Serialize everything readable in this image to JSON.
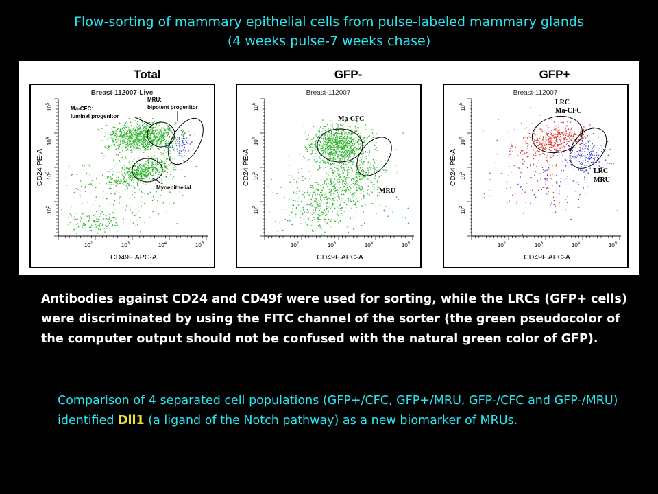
{
  "title": {
    "line1": "Flow-sorting of mammary epithelial cells from pulse-labeled mammary glands",
    "line2": "(4 weeks pulse-7 weeks chase)"
  },
  "panels": [
    {
      "heading": "Total",
      "sample": "Breast-112007-Live",
      "ylabel": "CD24 PE-A",
      "xlabel": "CD49F APC-A",
      "annotations": [
        "Ma-CFC:",
        "luminal progenitor",
        "MRU:",
        "bipotent progenitor",
        "Myoepithelial"
      ],
      "dot_color": "#2fb52f"
    },
    {
      "heading": "GFP-",
      "sample": "Breast-112007",
      "ylabel": "CD24 PE-A",
      "xlabel": "CD49F APC-A",
      "annotations": [
        "Ma-CFC",
        "MRU"
      ],
      "dot_color": "#2fb52f"
    },
    {
      "heading": "GFP+",
      "sample": "Breast-112007",
      "ylabel": "CD24 PE-A",
      "xlabel": "CD49F APC-A",
      "annotations": [
        "LRC",
        "Ma-CFC",
        "LRC",
        "MRU"
      ],
      "dot_colors": [
        "#e03a3a",
        "#3a48e0"
      ]
    }
  ],
  "ticks": {
    "x": [
      "10",
      "10",
      "10",
      "10"
    ],
    "x_exp": [
      "2",
      "3",
      "4",
      "5"
    ],
    "y": [
      "10",
      "10",
      "10",
      "10"
    ],
    "y_exp": [
      "2",
      "3",
      "4",
      "5"
    ]
  },
  "paragraph1": "Antibodies against CD24 and CD49f were used for sorting, while the LRCs (GFP+ cells) were discriminated by using the FITC channel of the sorter (the green pseudocolor of the computer output should not be confused with the natural green color of GFP).",
  "paragraph2": {
    "before": "Comparison of 4 separated cell populations (GFP+/CFC, GFP+/MRU, GFP-/CFC and GFP-/MRU) identified ",
    "highlight": "Dll1",
    "after": " (a ligand of the Notch pathway) as a new biomarker of MRUs."
  },
  "colors": {
    "title": "#27e6f0",
    "highlight": "#e9e233",
    "body_text": "#ffffff"
  }
}
